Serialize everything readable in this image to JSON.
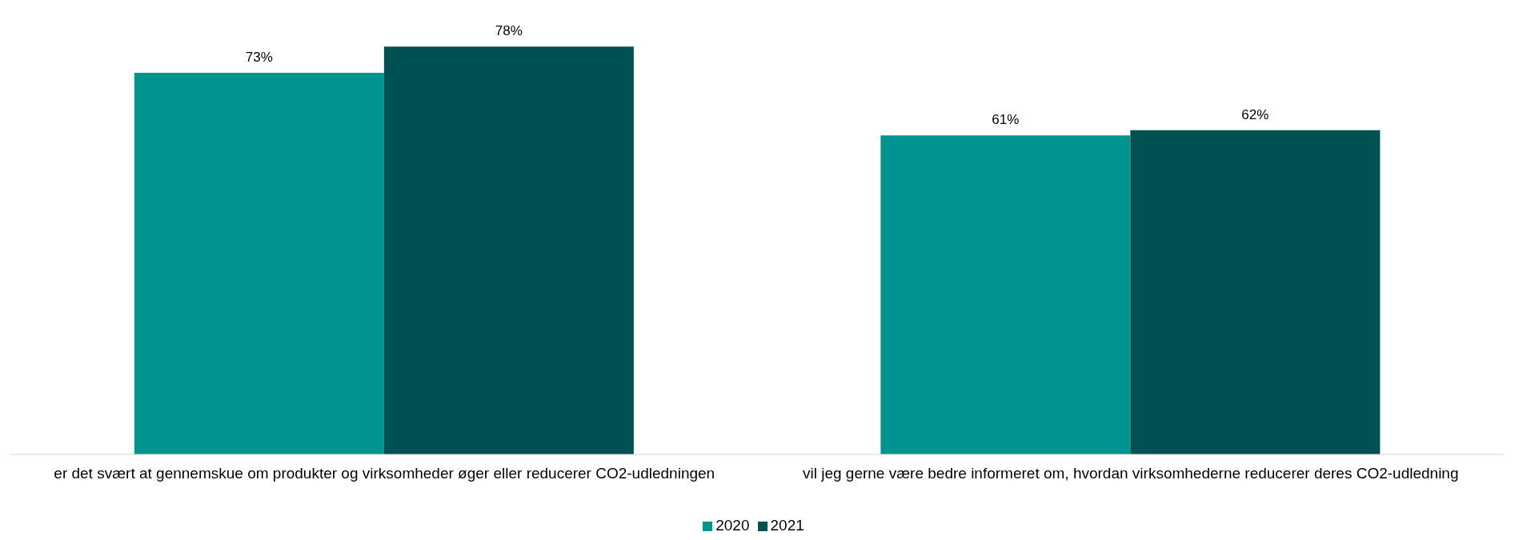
{
  "chart_data": {
    "type": "bar",
    "categories": [
      "er det svært at gennemskue om produkter og virksomheder øger eller reducerer CO2-udledningen",
      "vil jeg gerne være bedre informeret om, hvordan virksomhederne reducerer deres CO2-udledning"
    ],
    "series": [
      {
        "name": "2020",
        "color": "#009490",
        "values": [
          73,
          61
        ],
        "value_labels": [
          "73%",
          "61%"
        ]
      },
      {
        "name": "2021",
        "color": "#005151",
        "values": [
          78,
          62
        ],
        "value_labels": [
          "78%",
          "62%"
        ]
      }
    ],
    "legend": "bottom",
    "grid": false
  }
}
